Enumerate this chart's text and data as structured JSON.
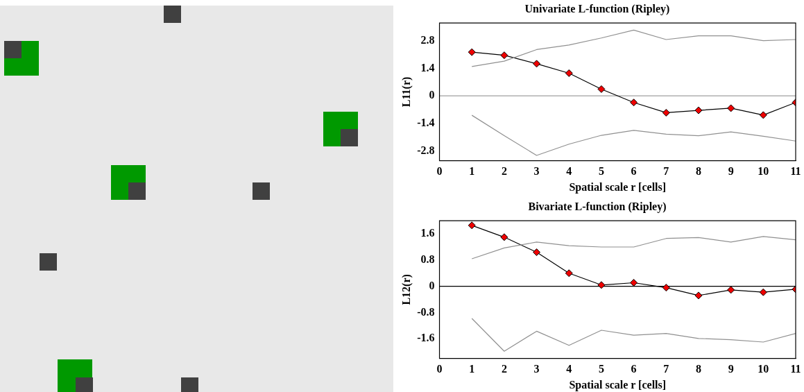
{
  "chart_data": [
    {
      "type": "line",
      "title": "Univariate L-function (Ripley)",
      "xlabel": "Spatial scale r [cells]",
      "ylabel": "L11(r)",
      "x": [
        1,
        2,
        3,
        4,
        5,
        6,
        7,
        8,
        9,
        10,
        11
      ],
      "xlim": [
        0,
        11
      ],
      "xticks": [
        0,
        1,
        2,
        3,
        4,
        5,
        6,
        7,
        8,
        9,
        10,
        11
      ],
      "ylim": [
        -3.3,
        3.7
      ],
      "yticks": [
        -2.8,
        -1.4,
        0,
        1.4,
        2.8
      ],
      "ref_lines": [
        {
          "axis": "y",
          "value": 0,
          "color": "#a0a0a0"
        }
      ],
      "series": [
        {
          "color": "#909090",
          "marker": "none",
          "values": [
            1.49,
            1.76,
            2.35,
            2.58,
            2.94,
            3.34,
            2.86,
            3.05,
            3.05,
            2.8,
            2.86
          ]
        },
        {
          "color": "#909090",
          "marker": "none",
          "values": [
            -0.99,
            -2.03,
            -3.03,
            -2.46,
            -2.01,
            -1.76,
            -1.95,
            -2.03,
            -1.84,
            -2.06,
            -2.3
          ]
        },
        {
          "color": "#000000",
          "marker": "diamond",
          "values": [
            2.22,
            2.06,
            1.63,
            1.15,
            0.34,
            -0.34,
            -0.86,
            -0.74,
            -0.63,
            -0.98,
            -0.34
          ]
        }
      ]
    },
    {
      "type": "line",
      "title": "Bivariate L-function (Ripley)",
      "xlabel": "Spatial scale r [cells]",
      "ylabel": "L12(r)",
      "x": [
        1,
        2,
        3,
        4,
        5,
        6,
        7,
        8,
        9,
        10,
        11
      ],
      "xlim": [
        0,
        11
      ],
      "xticks": [
        0,
        1,
        2,
        3,
        4,
        5,
        6,
        7,
        8,
        9,
        10,
        11
      ],
      "ylim": [
        -2.2,
        2.0
      ],
      "yticks": [
        -1.6,
        -0.8,
        0,
        0.8,
        1.6
      ],
      "ref_lines": [
        {
          "axis": "y",
          "value": 0,
          "color": "#000000"
        }
      ],
      "series": [
        {
          "color": "#909090",
          "marker": "none",
          "values": [
            0.84,
            1.17,
            1.35,
            1.24,
            1.2,
            1.2,
            1.46,
            1.49,
            1.35,
            1.52,
            1.42
          ]
        },
        {
          "color": "#909090",
          "marker": "none",
          "values": [
            -0.98,
            -1.98,
            -1.37,
            -1.8,
            -1.34,
            -1.49,
            -1.44,
            -1.59,
            -1.63,
            -1.7,
            -1.44
          ]
        },
        {
          "color": "#000000",
          "marker": "diamond",
          "values": [
            1.86,
            1.5,
            1.04,
            0.4,
            0.04,
            0.11,
            -0.04,
            -0.28,
            -0.11,
            -0.18,
            -0.09
          ]
        }
      ]
    }
  ]
}
